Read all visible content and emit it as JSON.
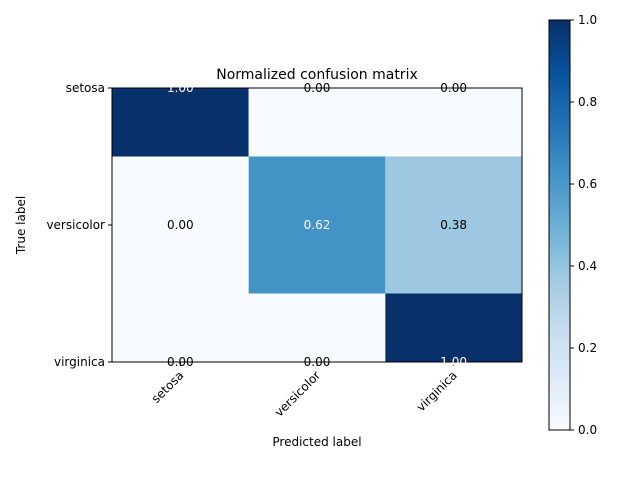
{
  "chart_data": {
    "type": "heatmap",
    "title": "Normalized confusion matrix",
    "xlabel": "Predicted label",
    "ylabel": "True label",
    "x_categories": [
      "setosa",
      "versicolor",
      "virginica"
    ],
    "y_categories": [
      "setosa",
      "versicolor",
      "virginica"
    ],
    "values": [
      [
        1.0,
        0.0,
        0.0
      ],
      [
        0.0,
        0.62,
        0.38
      ],
      [
        0.0,
        0.0,
        1.0
      ]
    ],
    "cell_labels": [
      [
        "1.00",
        "0.00",
        "0.00"
      ],
      [
        "0.00",
        "0.62",
        "0.38"
      ],
      [
        "0.00",
        "0.00",
        "1.00"
      ]
    ],
    "colormap": "Blues",
    "color_range": [
      0.0,
      1.0
    ],
    "colorbar_ticks": [
      "0.0",
      "0.2",
      "0.4",
      "0.6",
      "0.8",
      "1.0"
    ],
    "grid": false
  }
}
